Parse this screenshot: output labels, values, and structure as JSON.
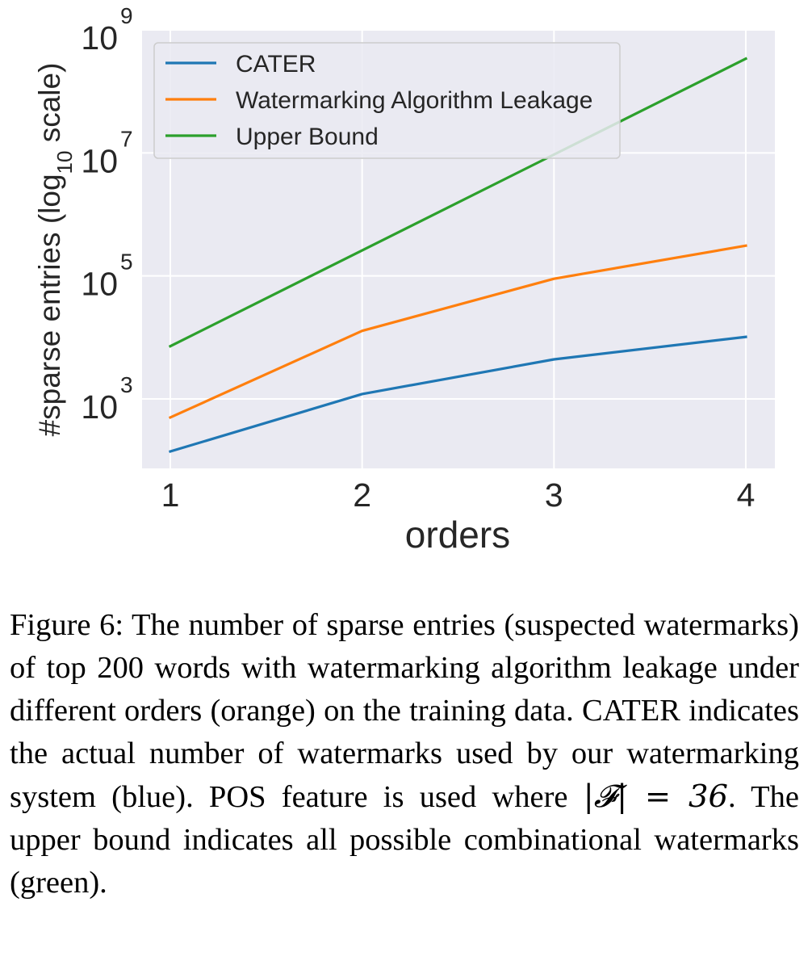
{
  "chart_data": {
    "type": "line",
    "x": [
      1,
      2,
      3,
      4
    ],
    "xticks": [
      "1",
      "2",
      "3",
      "4"
    ],
    "xlabel": "orders",
    "ylabel_parts": {
      "prefix": "#sparse entries (log",
      "subscript": "10",
      "suffix": " scale)"
    },
    "yscale": "log",
    "ylim": [
      12,
      1000000000
    ],
    "yticks": [
      {
        "base": "10",
        "exp": "3",
        "value": 1000
      },
      {
        "base": "10",
        "exp": "5",
        "value": 100000
      },
      {
        "base": "10",
        "exp": "7",
        "value": 10000000
      },
      {
        "base": "10",
        "exp": "9",
        "value": 1000000000
      }
    ],
    "grid": true,
    "legend_position": "top-left",
    "series": [
      {
        "name": "CATER",
        "color": "#1f77b4",
        "values": [
          140,
          1200,
          4400,
          10200
        ]
      },
      {
        "name": "Watermarking Algorithm Leakage",
        "color": "#ff7f0e",
        "values": [
          500,
          12800,
          90000,
          310000
        ]
      },
      {
        "name": "Upper Bound",
        "color": "#2ca02c",
        "values": [
          7200,
          260000,
          9400000,
          340000000
        ]
      }
    ],
    "background_color": "#eaeaf2",
    "grid_color": "#ffffff"
  },
  "caption": {
    "label": "Figure 6:",
    "text_before_math": "The number of sparse entries (suspected watermarks) of top 200 words with watermark­ing algorithm leakage under different orders (or­ange) on the training data. CATER indicates the actual number of watermarks used by our water­marking system (blue). POS feature is used where",
    "math": "|𝓕| = 36",
    "text_after_math": ". The upper bound indicates all possible combinational watermarks (green)."
  }
}
